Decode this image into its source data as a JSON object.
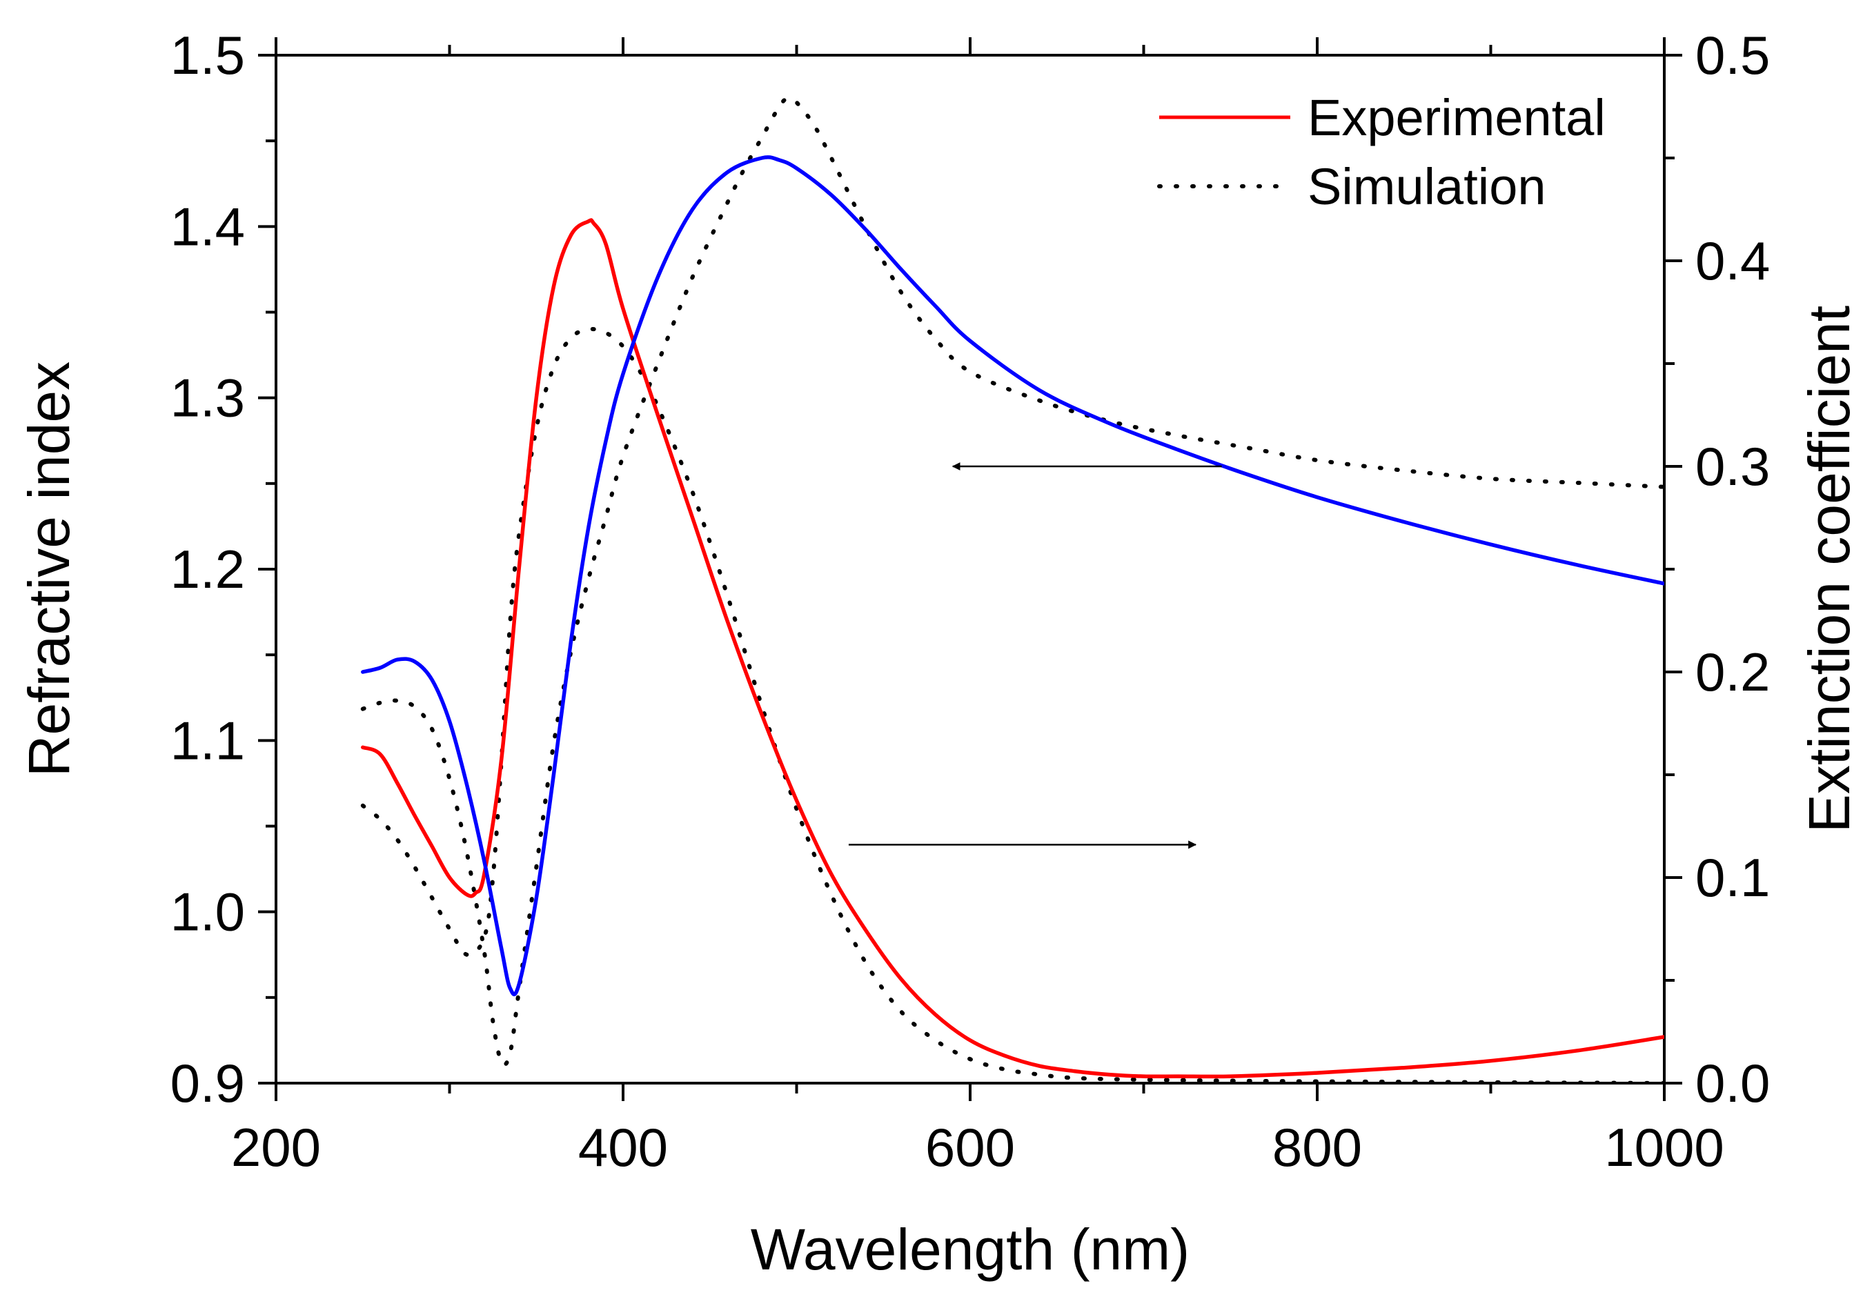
{
  "chart_data": {
    "type": "line",
    "xlabel": "Wavelength (nm)",
    "ylabel_left": "Refractive index",
    "ylabel_right": "Extinction coefficient",
    "xlim": [
      200,
      1000
    ],
    "ylim_left": [
      0.9,
      1.5
    ],
    "ylim_right": [
      0.0,
      0.5
    ],
    "xticks": [
      "200",
      "400",
      "600",
      "800",
      "1000"
    ],
    "yticks_left": [
      "0.9",
      "1.0",
      "1.1",
      "1.2",
      "1.3",
      "1.4",
      "1.5"
    ],
    "yticks_right": [
      "0.0",
      "0.1",
      "0.2",
      "0.3",
      "0.4",
      "0.5"
    ],
    "legend_position": "top-right",
    "legend": [
      {
        "label": "Experimental",
        "style": "solid",
        "color": "#ff0000"
      },
      {
        "label": "Simulation",
        "style": "dotted",
        "color": "#000000"
      }
    ],
    "series": [
      {
        "name": "Experimental refractive index",
        "axis": "left",
        "color": "#ff0000",
        "style": "solid",
        "x": [
          250,
          260,
          270,
          280,
          290,
          300,
          310,
          315,
          320,
          330,
          340,
          350,
          360,
          370,
          380,
          383,
          390,
          400,
          420,
          440,
          460,
          480,
          500,
          520,
          540,
          560,
          580,
          600,
          620,
          640,
          660,
          680,
          700,
          720,
          750,
          800,
          850,
          900,
          950,
          1000
        ],
        "y": [
          1.096,
          1.092,
          1.075,
          1.056,
          1.038,
          1.02,
          1.01,
          1.011,
          1.022,
          1.09,
          1.2,
          1.3,
          1.365,
          1.395,
          1.403,
          1.402,
          1.39,
          1.352,
          1.29,
          1.23,
          1.17,
          1.115,
          1.065,
          1.022,
          0.989,
          0.961,
          0.94,
          0.925,
          0.916,
          0.91,
          0.907,
          0.905,
          0.904,
          0.904,
          0.904,
          0.906,
          0.909,
          0.913,
          0.919,
          0.927
        ]
      },
      {
        "name": "Experimental extinction coefficient",
        "axis": "right",
        "color": "#0000ff",
        "style": "solid",
        "x": [
          250,
          260,
          270,
          280,
          290,
          300,
          310,
          320,
          330,
          335,
          340,
          350,
          360,
          370,
          380,
          390,
          400,
          420,
          440,
          460,
          480,
          490,
          500,
          520,
          540,
          560,
          580,
          600,
          640,
          680,
          720,
          760,
          800,
          850,
          900,
          950,
          1000
        ],
        "y": [
          0.2,
          0.202,
          0.206,
          0.205,
          0.196,
          0.176,
          0.145,
          0.108,
          0.065,
          0.046,
          0.048,
          0.09,
          0.15,
          0.215,
          0.27,
          0.312,
          0.345,
          0.392,
          0.425,
          0.443,
          0.45,
          0.449,
          0.445,
          0.432,
          0.415,
          0.396,
          0.378,
          0.361,
          0.337,
          0.321,
          0.308,
          0.296,
          0.285,
          0.273,
          0.262,
          0.252,
          0.243
        ]
      },
      {
        "name": "Simulation refractive index",
        "axis": "left",
        "color": "#000000",
        "style": "dotted",
        "x": [
          250,
          260,
          270,
          280,
          290,
          300,
          310,
          320,
          325,
          330,
          335,
          340,
          350,
          360,
          370,
          380,
          390,
          400,
          410,
          420,
          440,
          460,
          480,
          500,
          520,
          540,
          560,
          580,
          600,
          620,
          640,
          660,
          700,
          800,
          1000
        ],
        "y": [
          1.062,
          1.054,
          1.042,
          1.026,
          1.008,
          0.99,
          0.975,
          0.985,
          1.02,
          1.09,
          1.17,
          1.22,
          1.282,
          1.318,
          1.335,
          1.34,
          1.338,
          1.33,
          1.315,
          1.295,
          1.245,
          1.185,
          1.12,
          1.06,
          1.01,
          0.97,
          0.942,
          0.925,
          0.914,
          0.908,
          0.905,
          0.903,
          0.902,
          0.901,
          0.9
        ]
      },
      {
        "name": "Simulation extinction coefficient",
        "axis": "right",
        "color": "#000000",
        "style": "dotted",
        "x": [
          250,
          260,
          270,
          280,
          290,
          300,
          310,
          320,
          325,
          330,
          335,
          340,
          350,
          360,
          370,
          380,
          390,
          400,
          420,
          440,
          460,
          470,
          480,
          490,
          495,
          500,
          510,
          520,
          540,
          560,
          580,
          600,
          640,
          680,
          720,
          760,
          800,
          850,
          900,
          950,
          1000
        ],
        "y": [
          0.182,
          0.185,
          0.186,
          0.183,
          0.172,
          0.148,
          0.112,
          0.064,
          0.03,
          0.01,
          0.015,
          0.045,
          0.105,
          0.165,
          0.21,
          0.245,
          0.275,
          0.305,
          0.35,
          0.392,
          0.428,
          0.445,
          0.46,
          0.475,
          0.479,
          0.477,
          0.466,
          0.45,
          0.416,
          0.385,
          0.362,
          0.346,
          0.332,
          0.322,
          0.315,
          0.309,
          0.303,
          0.298,
          0.294,
          0.292,
          0.29
        ]
      }
    ],
    "annotations": [
      {
        "type": "arrow",
        "direction": "left",
        "meaning": "refers to left axis",
        "x_from": 745,
        "x_to": 590,
        "y_right": 0.3
      },
      {
        "type": "arrow",
        "direction": "right",
        "meaning": "refers to right axis",
        "x_from": 530,
        "x_to": 730,
        "y_right": 0.116
      }
    ]
  }
}
